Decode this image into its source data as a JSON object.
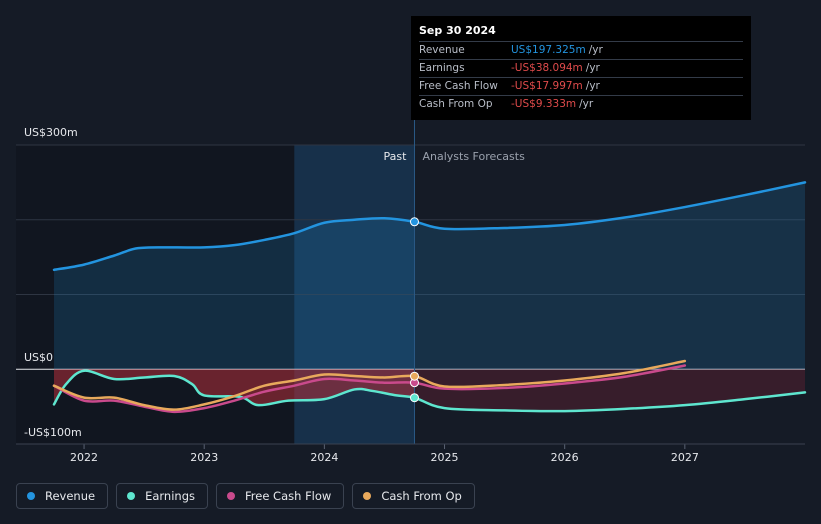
{
  "tooltip": {
    "date": "Sep 30 2024",
    "rows": [
      {
        "label": "Revenue",
        "value": "US$197.325m",
        "unit": "/yr",
        "color": "#2394df"
      },
      {
        "label": "Earnings",
        "value": "-US$38.094m",
        "unit": "/yr",
        "color": "#e04b4b"
      },
      {
        "label": "Free Cash Flow",
        "value": "-US$17.997m",
        "unit": "/yr",
        "color": "#e04b4b"
      },
      {
        "label": "Cash From Op",
        "value": "-US$9.333m",
        "unit": "/yr",
        "color": "#e04b4b"
      }
    ]
  },
  "legend": [
    {
      "label": "Revenue",
      "color": "#2394df"
    },
    {
      "label": "Earnings",
      "color": "#5ee6cf"
    },
    {
      "label": "Free Cash Flow",
      "color": "#c94a8c"
    },
    {
      "label": "Cash From Op",
      "color": "#e8a95c"
    }
  ],
  "chart_data": {
    "type": "line",
    "ylabels": [
      "US$300m",
      "US$0",
      "-US$100m"
    ],
    "ylim": [
      -100,
      300
    ],
    "xlim": [
      2021.7,
      2028.0
    ],
    "x_ticks": [
      {
        "value": 2022,
        "label": "2022"
      },
      {
        "value": 2023,
        "label": "2023"
      },
      {
        "value": 2024,
        "label": "2024"
      },
      {
        "value": 2025,
        "label": "2025"
      },
      {
        "value": 2026,
        "label": "2026"
      },
      {
        "value": 2027,
        "label": "2027"
      }
    ],
    "divider_x": 2024.75,
    "highlight_start": 2023.75,
    "past_label": "Past",
    "forecast_label": "Analysts Forecasts",
    "grid": true,
    "series": [
      {
        "name": "Revenue",
        "color": "#2394df",
        "points": [
          [
            2021.75,
            133
          ],
          [
            2022.0,
            140
          ],
          [
            2022.25,
            152
          ],
          [
            2022.45,
            162
          ],
          [
            2022.75,
            163
          ],
          [
            2023.0,
            163
          ],
          [
            2023.25,
            166
          ],
          [
            2023.5,
            173
          ],
          [
            2023.75,
            182
          ],
          [
            2024.0,
            196
          ],
          [
            2024.25,
            200
          ],
          [
            2024.5,
            202
          ],
          [
            2024.75,
            197.3
          ],
          [
            2025.0,
            188
          ],
          [
            2025.5,
            189
          ],
          [
            2026.0,
            193
          ],
          [
            2026.5,
            203
          ],
          [
            2027.0,
            217
          ],
          [
            2027.5,
            233
          ],
          [
            2028.0,
            250
          ]
        ]
      },
      {
        "name": "Earnings",
        "color": "#5ee6cf",
        "points": [
          [
            2021.75,
            -47
          ],
          [
            2021.85,
            -20
          ],
          [
            2022.0,
            -2
          ],
          [
            2022.25,
            -13
          ],
          [
            2022.5,
            -11
          ],
          [
            2022.75,
            -9
          ],
          [
            2022.9,
            -20
          ],
          [
            2023.0,
            -35
          ],
          [
            2023.3,
            -37
          ],
          [
            2023.45,
            -48
          ],
          [
            2023.7,
            -42
          ],
          [
            2024.0,
            -40
          ],
          [
            2024.25,
            -27
          ],
          [
            2024.4,
            -29
          ],
          [
            2024.6,
            -35
          ],
          [
            2024.75,
            -38.1
          ],
          [
            2025.0,
            -52
          ],
          [
            2025.5,
            -55
          ],
          [
            2026.0,
            -56
          ],
          [
            2026.5,
            -53
          ],
          [
            2027.0,
            -48
          ],
          [
            2027.5,
            -40
          ],
          [
            2028.0,
            -31
          ]
        ]
      },
      {
        "name": "Free Cash Flow",
        "color": "#c94a8c",
        "points": [
          [
            2021.75,
            -22
          ],
          [
            2022.0,
            -42
          ],
          [
            2022.25,
            -42
          ],
          [
            2022.5,
            -50
          ],
          [
            2022.75,
            -57
          ],
          [
            2023.0,
            -52
          ],
          [
            2023.25,
            -42
          ],
          [
            2023.5,
            -30
          ],
          [
            2023.75,
            -22
          ],
          [
            2024.0,
            -13
          ],
          [
            2024.25,
            -15
          ],
          [
            2024.5,
            -18
          ],
          [
            2024.75,
            -18
          ],
          [
            2025.0,
            -26
          ],
          [
            2025.5,
            -25
          ],
          [
            2026.0,
            -19
          ],
          [
            2026.5,
            -10
          ],
          [
            2027.0,
            5
          ]
        ]
      },
      {
        "name": "Cash From Op",
        "color": "#e8a95c",
        "points": [
          [
            2021.75,
            -22
          ],
          [
            2022.0,
            -38
          ],
          [
            2022.25,
            -38
          ],
          [
            2022.5,
            -48
          ],
          [
            2022.75,
            -54
          ],
          [
            2023.0,
            -47
          ],
          [
            2023.25,
            -36
          ],
          [
            2023.5,
            -22
          ],
          [
            2023.75,
            -15
          ],
          [
            2024.0,
            -7
          ],
          [
            2024.25,
            -9
          ],
          [
            2024.5,
            -11
          ],
          [
            2024.75,
            -9.3
          ],
          [
            2025.0,
            -23
          ],
          [
            2025.5,
            -21
          ],
          [
            2026.0,
            -15
          ],
          [
            2026.5,
            -5
          ],
          [
            2027.0,
            11
          ]
        ]
      }
    ]
  }
}
